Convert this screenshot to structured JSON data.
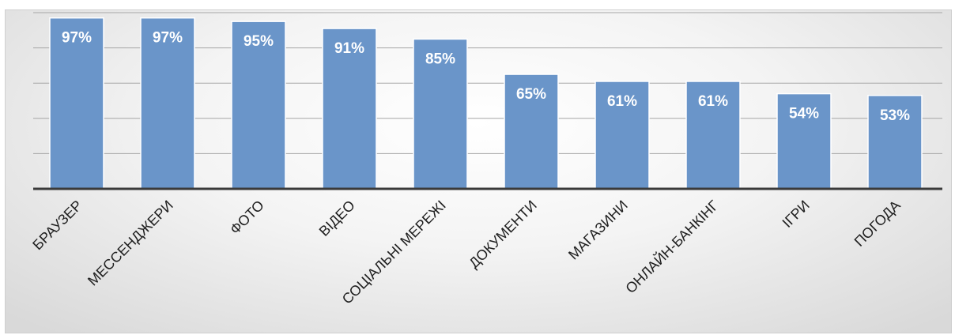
{
  "chart_data": {
    "type": "bar",
    "categories": [
      "БРАУЗЕР",
      "МЕССЕНДЖЕРИ",
      "ФОТО",
      "ВІДЕО",
      "СОЦІАЛЬНІ МЕРЕЖІ",
      "ДОКУМЕНТИ",
      "МАГАЗИНИ",
      "ОНЛАЙН-БАНКІНГ",
      "ІГРИ",
      "ПОГОДА"
    ],
    "values": [
      97,
      97,
      95,
      91,
      85,
      65,
      61,
      61,
      54,
      53
    ],
    "value_labels": [
      "97%",
      "97%",
      "95%",
      "91%",
      "85%",
      "65%",
      "61%",
      "61%",
      "54%",
      "53%"
    ],
    "title": "",
    "xlabel": "",
    "ylabel": "",
    "ylim": [
      0,
      100
    ],
    "grid": true,
    "legend": "none",
    "bar_color": "#6a95c9"
  }
}
